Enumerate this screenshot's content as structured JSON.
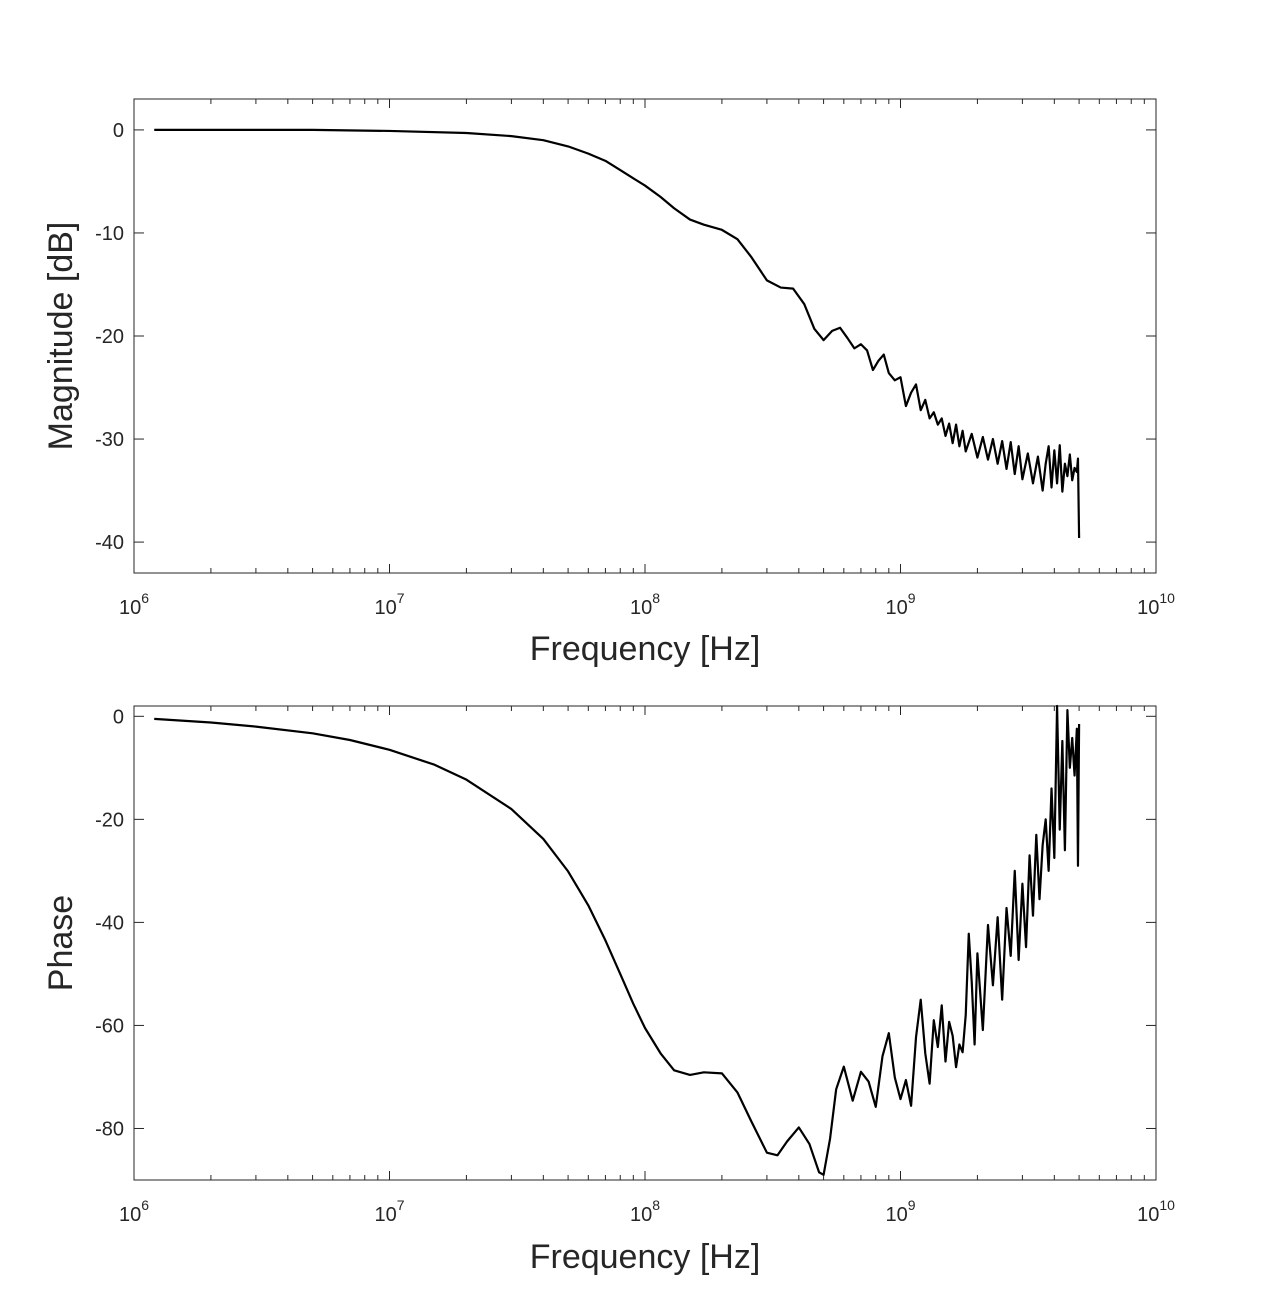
{
  "chart_data": [
    {
      "type": "line",
      "title": "",
      "xlabel": "Frequency [Hz]",
      "ylabel": "Magnitude [dB]",
      "xscale": "log",
      "xlim": [
        1000000,
        10000000000
      ],
      "ylim": [
        -43,
        3
      ],
      "x_ticks": [
        {
          "base": "10",
          "exp": "6"
        },
        {
          "base": "10",
          "exp": "7"
        },
        {
          "base": "10",
          "exp": "8"
        },
        {
          "base": "10",
          "exp": "9"
        },
        {
          "base": "10",
          "exp": "10"
        }
      ],
      "y_ticks": [
        "0",
        "-10",
        "-20",
        "-30",
        "-40"
      ],
      "y_tick_values": [
        0,
        -10,
        -20,
        -30,
        -40
      ],
      "series": [
        {
          "color": "#000000",
          "x": [
            1200000,
            2000000,
            5000000,
            10000000,
            20000000,
            30000000,
            40000000,
            50000000,
            60000000,
            70000000,
            80000000,
            90000000,
            100000000,
            115000000,
            130000000,
            150000000,
            170000000,
            200000000,
            230000000,
            260000000,
            300000000,
            340000000,
            380000000,
            420000000,
            460000000,
            500000000,
            540000000,
            580000000,
            620000000,
            660000000,
            700000000,
            740000000,
            780000000,
            820000000,
            860000000,
            900000000,
            950000000,
            1000000000,
            1050000000,
            1100000000,
            1150000000,
            1200000000,
            1250000000,
            1300000000,
            1350000000,
            1400000000,
            1450000000,
            1500000000,
            1550000000,
            1600000000,
            1650000000,
            1700000000,
            1750000000,
            1800000000,
            1900000000,
            2000000000,
            2100000000,
            2200000000,
            2300000000,
            2400000000,
            2500000000,
            2600000000,
            2700000000,
            2800000000,
            2900000000,
            3000000000,
            3150000000,
            3300000000,
            3450000000,
            3600000000,
            3700000000,
            3800000000,
            3900000000,
            4000000000,
            4100000000,
            4200000000,
            4300000000,
            4400000000,
            4500000000,
            4600000000,
            4700000000,
            4800000000,
            4900000000,
            4950000000,
            5000000000
          ],
          "y": [
            0,
            0,
            0,
            -0.1,
            -0.3,
            -0.6,
            -1.0,
            -1.6,
            -2.3,
            -3.0,
            -3.9,
            -4.7,
            -5.4,
            -6.5,
            -7.6,
            -8.7,
            -9.2,
            -9.7,
            -10.6,
            -12.3,
            -14.6,
            -15.3,
            -15.4,
            -16.9,
            -19.3,
            -20.4,
            -19.5,
            -19.2,
            -20.2,
            -21.2,
            -20.8,
            -21.4,
            -23.3,
            -22.4,
            -21.8,
            -23.6,
            -24.3,
            -24.0,
            -26.8,
            -25.5,
            -24.7,
            -27.2,
            -26.2,
            -28.0,
            -27.4,
            -28.6,
            -28.0,
            -29.7,
            -28.5,
            -30.4,
            -28.6,
            -30.7,
            -29.2,
            -31.2,
            -29.5,
            -31.8,
            -29.8,
            -32.0,
            -30.0,
            -32.4,
            -30.2,
            -32.9,
            -30.3,
            -33.4,
            -30.7,
            -33.9,
            -31.4,
            -34.3,
            -31.7,
            -35.0,
            -32.4,
            -30.7,
            -34.7,
            -31.1,
            -34.3,
            -30.6,
            -35.1,
            -32.4,
            -33.6,
            -31.5,
            -34.0,
            -32.8,
            -33.2,
            -31.9,
            -39.6
          ]
        }
      ],
      "grid": false,
      "legend": null
    },
    {
      "type": "line",
      "title": "",
      "xlabel": "Frequency [Hz]",
      "ylabel": "Phase",
      "xscale": "log",
      "xlim": [
        1000000,
        10000000000
      ],
      "ylim": [
        -90,
        2
      ],
      "x_ticks": [
        {
          "base": "10",
          "exp": "6"
        },
        {
          "base": "10",
          "exp": "7"
        },
        {
          "base": "10",
          "exp": "8"
        },
        {
          "base": "10",
          "exp": "9"
        },
        {
          "base": "10",
          "exp": "10"
        }
      ],
      "y_ticks": [
        "0",
        "-20",
        "-40",
        "-60",
        "-80"
      ],
      "y_tick_values": [
        0,
        -20,
        -40,
        -60,
        -80
      ],
      "series": [
        {
          "color": "#000000",
          "x": [
            1200000,
            2000000,
            3000000,
            5000000,
            7000000,
            10000000,
            15000000,
            20000000,
            30000000,
            40000000,
            50000000,
            60000000,
            70000000,
            80000000,
            90000000,
            100000000,
            115000000,
            130000000,
            150000000,
            170000000,
            200000000,
            230000000,
            260000000,
            300000000,
            330000000,
            360000000,
            400000000,
            440000000,
            480000000,
            500000000,
            530000000,
            560000000,
            600000000,
            650000000,
            700000000,
            750000000,
            800000000,
            850000000,
            900000000,
            950000000,
            1000000000,
            1050000000,
            1100000000,
            1150000000,
            1200000000,
            1250000000,
            1300000000,
            1350000000,
            1400000000,
            1450000000,
            1500000000,
            1550000000,
            1600000000,
            1650000000,
            1700000000,
            1750000000,
            1800000000,
            1850000000,
            1900000000,
            1950000000,
            2000000000,
            2100000000,
            2200000000,
            2300000000,
            2400000000,
            2500000000,
            2600000000,
            2700000000,
            2800000000,
            2900000000,
            3000000000,
            3100000000,
            3200000000,
            3300000000,
            3400000000,
            3500000000,
            3600000000,
            3700000000,
            3800000000,
            3900000000,
            4000000000,
            4100000000,
            4200000000,
            4300000000,
            4400000000,
            4500000000,
            4600000000,
            4700000000,
            4800000000,
            4900000000,
            4950000000,
            5000000000
          ],
          "y": [
            -0.5,
            -1.2,
            -2.0,
            -3.3,
            -4.6,
            -6.5,
            -9.4,
            -12.3,
            -18.0,
            -23.8,
            -30.1,
            -36.7,
            -43.5,
            -50.0,
            -55.8,
            -60.5,
            -65.4,
            -68.7,
            -69.6,
            -69.1,
            -69.3,
            -73.0,
            -78.5,
            -84.7,
            -85.2,
            -82.5,
            -79.8,
            -83.0,
            -88.5,
            -89.0,
            -82.0,
            -72.4,
            -68.0,
            -74.6,
            -69.0,
            -70.9,
            -75.8,
            -66.0,
            -61.5,
            -70.1,
            -74.3,
            -70.6,
            -75.6,
            -62.3,
            -55.0,
            -65.4,
            -71.3,
            -59.0,
            -64.2,
            -56.1,
            -67.0,
            -59.3,
            -62.0,
            -68.1,
            -63.7,
            -65.2,
            -58.0,
            -42.2,
            -51.5,
            -63.7,
            -46.0,
            -60.9,
            -40.5,
            -52.2,
            -39.0,
            -55.0,
            -37.2,
            -46.5,
            -30.0,
            -47.3,
            -32.5,
            -44.8,
            -27.0,
            -38.7,
            -23.0,
            -35.5,
            -25.0,
            -20.0,
            -30.0,
            -14.0,
            -27.5,
            2.0,
            -22.0,
            -4.8,
            -26.0,
            1.2,
            -10.0,
            -4.2,
            -11.5,
            -2.4,
            -29.0,
            -1.5
          ]
        }
      ],
      "grid": false,
      "legend": null
    }
  ]
}
